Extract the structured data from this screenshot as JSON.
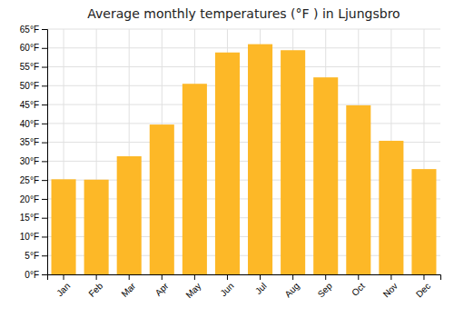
{
  "chart_data": {
    "type": "bar",
    "title": "Average monthly temperatures (°F ) in Ljungsbro",
    "categories": [
      "Jan",
      "Feb",
      "Mar",
      "Apr",
      "May",
      "Jun",
      "Jul",
      "Aug",
      "Sep",
      "Oct",
      "Nov",
      "Dec"
    ],
    "values": [
      25.2,
      25.1,
      31.3,
      39.7,
      50.5,
      58.8,
      61.0,
      59.4,
      52.2,
      44.8,
      35.4,
      27.9
    ],
    "color": "#FDB827",
    "ylim": [
      0,
      65
    ],
    "yticks": [
      {
        "value": 0,
        "label": "0°F"
      },
      {
        "value": 5,
        "label": "5°F"
      },
      {
        "value": 10,
        "label": "10°F"
      },
      {
        "value": 15,
        "label": "15°F"
      },
      {
        "value": 20,
        "label": "20°F"
      },
      {
        "value": 25,
        "label": "25°F"
      },
      {
        "value": 30,
        "label": "30°F"
      },
      {
        "value": 35,
        "label": "35°F"
      },
      {
        "value": 40,
        "label": "40°F"
      },
      {
        "value": 45,
        "label": "45°F"
      },
      {
        "value": 50,
        "label": "50°F"
      },
      {
        "value": 55,
        "label": "55°F"
      },
      {
        "value": 60,
        "label": "60°F"
      },
      {
        "value": 65,
        "label": "65°F"
      }
    ],
    "grid": true
  }
}
